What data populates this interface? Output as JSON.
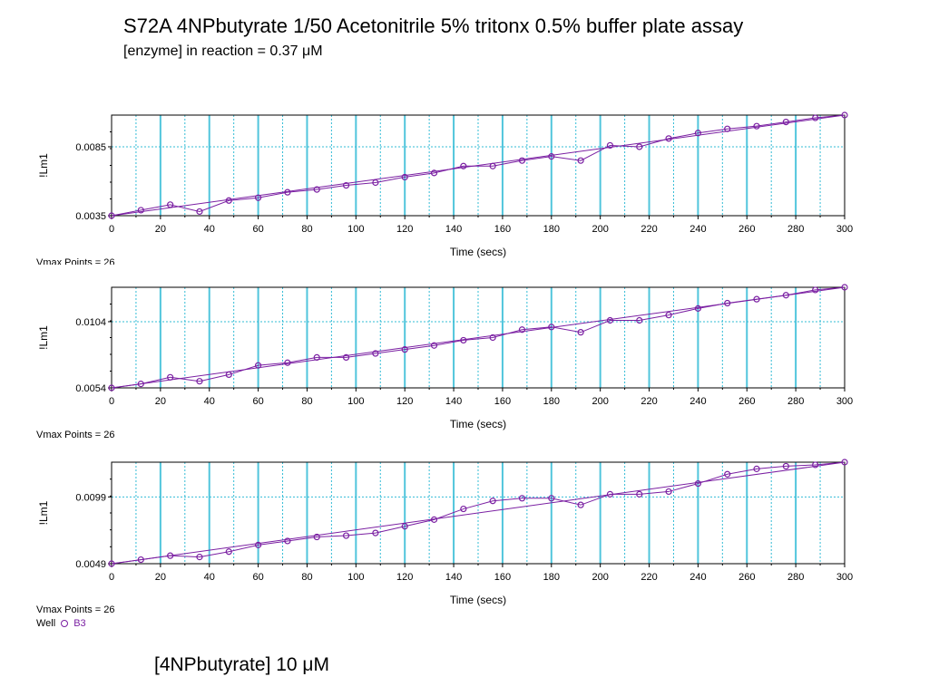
{
  "header": {
    "title": "S72A 4NPbutyrate 1/50   Acetonitrile 5% tritonx 0.5% buffer plate assay",
    "subtitle": "[enzyme] in reaction = 0.37 μM"
  },
  "footer": {
    "text": "[4NPbutyrate] 10 μM"
  },
  "legend": {
    "label": "Well",
    "value": "B3"
  },
  "colors": {
    "series": "#7a1fa2",
    "grid": "#33bcd6",
    "axis": "#000000"
  },
  "chart_data": [
    {
      "type": "line",
      "xlabel": "Time (secs)",
      "ylabel": "!Lm1",
      "xlim": [
        0,
        300
      ],
      "ylim": [
        0.0035,
        0.0108
      ],
      "xticks": [
        0,
        20,
        40,
        60,
        80,
        100,
        120,
        140,
        160,
        180,
        200,
        220,
        240,
        260,
        280,
        300
      ],
      "yticks": [
        "0.0035",
        "0.0085"
      ],
      "note": "Vmax Points = 26",
      "series": [
        {
          "x": [
            0,
            12,
            24,
            36,
            48,
            60,
            72,
            84,
            96,
            108,
            120,
            132,
            144,
            156,
            168,
            180,
            192,
            204,
            216,
            228,
            240,
            252,
            264,
            276,
            288,
            300
          ],
          "values": [
            0.0035,
            0.0039,
            0.0043,
            0.0038,
            0.0046,
            0.0048,
            0.0052,
            0.0054,
            0.0057,
            0.0059,
            0.0063,
            0.0066,
            0.0071,
            0.0071,
            0.0075,
            0.0078,
            0.0075,
            0.0086,
            0.0085,
            0.0091,
            0.0095,
            0.0098,
            0.01,
            0.0103,
            0.0106,
            0.0108
          ],
          "fit": [
            0.0035,
            0.0108
          ]
        }
      ]
    },
    {
      "type": "line",
      "xlabel": "Time (secs)",
      "ylabel": "!Lm1",
      "xlim": [
        0,
        300
      ],
      "ylim": [
        0.0054,
        0.013
      ],
      "xticks": [
        0,
        20,
        40,
        60,
        80,
        100,
        120,
        140,
        160,
        180,
        200,
        220,
        240,
        260,
        280,
        300
      ],
      "yticks": [
        "0.0054",
        "0.0104"
      ],
      "note": "Vmax Points = 26",
      "series": [
        {
          "x": [
            0,
            12,
            24,
            36,
            48,
            60,
            72,
            84,
            96,
            108,
            120,
            132,
            144,
            156,
            168,
            180,
            192,
            204,
            216,
            228,
            240,
            252,
            264,
            276,
            288,
            300
          ],
          "values": [
            0.0054,
            0.0057,
            0.0062,
            0.0059,
            0.0064,
            0.0071,
            0.0073,
            0.0077,
            0.0077,
            0.008,
            0.0083,
            0.0086,
            0.009,
            0.0092,
            0.0098,
            0.01,
            0.0096,
            0.0105,
            0.0105,
            0.0109,
            0.0114,
            0.0118,
            0.0121,
            0.0124,
            0.0128,
            0.013
          ],
          "fit": [
            0.0054,
            0.013
          ]
        }
      ]
    },
    {
      "type": "line",
      "xlabel": "Time (secs)",
      "ylabel": "!Lm1",
      "xlim": [
        0,
        300
      ],
      "ylim": [
        0.0049,
        0.0125
      ],
      "xticks": [
        0,
        20,
        40,
        60,
        80,
        100,
        120,
        140,
        160,
        180,
        200,
        220,
        240,
        260,
        280,
        300
      ],
      "yticks": [
        "0.0049",
        "0.0099"
      ],
      "note": "Vmax Points = 26",
      "series": [
        {
          "x": [
            0,
            12,
            24,
            36,
            48,
            60,
            72,
            84,
            96,
            108,
            120,
            132,
            144,
            156,
            168,
            180,
            192,
            204,
            216,
            228,
            240,
            252,
            264,
            276,
            288,
            300
          ],
          "values": [
            0.0049,
            0.0052,
            0.0055,
            0.0054,
            0.0058,
            0.0063,
            0.0066,
            0.0069,
            0.007,
            0.0072,
            0.0077,
            0.0082,
            0.009,
            0.0096,
            0.0098,
            0.0098,
            0.0093,
            0.0101,
            0.0101,
            0.0103,
            0.0109,
            0.0116,
            0.012,
            0.0122,
            0.0123,
            0.0125
          ],
          "fit": [
            0.0049,
            0.0125
          ]
        }
      ]
    }
  ]
}
